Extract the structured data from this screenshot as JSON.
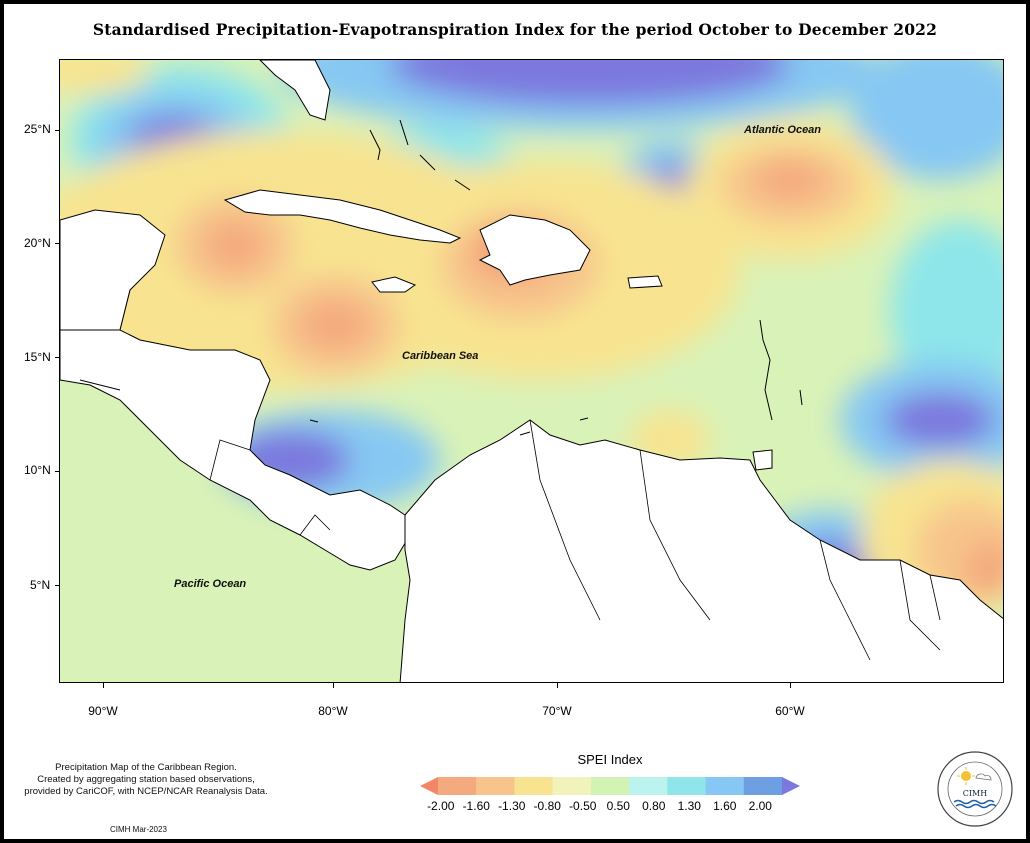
{
  "title": "Standardised Precipitation-Evapotranspiration Index for the period October to December 2022",
  "map": {
    "lat_ticks": [
      "25°N",
      "20°N",
      "15°N",
      "10°N",
      "5°N"
    ],
    "lon_ticks": [
      "90°W",
      "80°W",
      "70°W",
      "60°W"
    ],
    "labels": {
      "atlantic": "Atlantic Ocean",
      "caribbean": "Caribbean Sea",
      "pacific": "Pacific Ocean"
    }
  },
  "legend": {
    "title": "SPEI Index",
    "values": [
      "-2.00",
      "-1.60",
      "-1.30",
      "-0.80",
      "-0.50",
      "0.50",
      "0.80",
      "1.30",
      "1.60",
      "2.00"
    ],
    "colors": [
      "#f28767",
      "#f4a97e",
      "#f7c58c",
      "#f8e490",
      "#f1f3bb",
      "#d3f3b5",
      "#bdf3ee",
      "#8ee6ea",
      "#86c8f3",
      "#6f9fe3",
      "#7c78de"
    ]
  },
  "footer": {
    "description_lines": [
      "Precipitation Map of the Caribbean Region.",
      "Created by aggregating station based observations,",
      "provided by CariCOF, with NCEP/NCAR Reanalysis Data."
    ],
    "date": "CIMH Mar-2023"
  },
  "logo": {
    "text": "CIMH"
  }
}
